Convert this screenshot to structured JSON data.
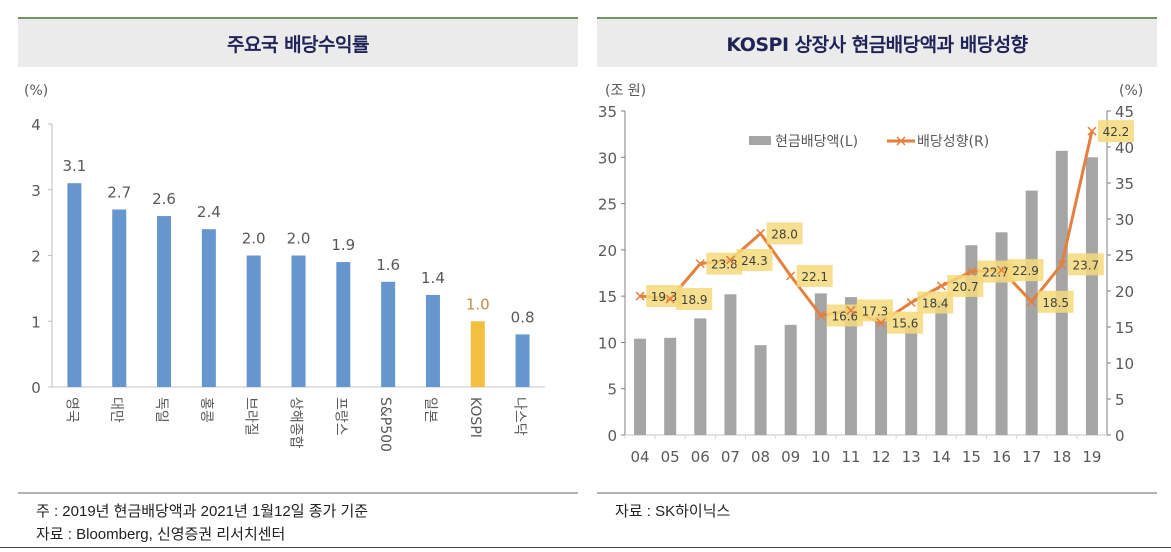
{
  "left_panel": {
    "title": "주요국 배당수익률",
    "notes": [
      "주 : 2019년 현금배당액과 2021년 1월12일 종가 기준",
      "자료 : Bloomberg, 신영증권 리서치센터"
    ]
  },
  "right_panel": {
    "title": "KOSPI 상장사 현금배당액과 배당성향",
    "notes": [
      "자료 : SK하이닉스"
    ]
  },
  "colors": {
    "bar_blue": "#6596cd",
    "bar_highlight": "#f2c03c",
    "highlight_label": "#c98a4b",
    "bar_gray": "#a5a5a5",
    "line_orange": "#e57f3c",
    "label_box": "#f5d97a",
    "axis": "#8c8c8c",
    "text": "#595959"
  },
  "chart_data": [
    {
      "type": "bar",
      "title": "주요국 배당수익률",
      "ylabel": "(%)",
      "xlabel": "",
      "ylim": [
        0,
        4
      ],
      "yticks": [
        "0",
        "1",
        "2",
        "3",
        "4"
      ],
      "grid": false,
      "categories": [
        "영국",
        "대만",
        "독일",
        "홍콩",
        "브라질",
        "상해종합",
        "프랑스",
        "S&P500",
        "일본",
        "KOSPI",
        "나스닥"
      ],
      "values": [
        3.1,
        2.7,
        2.6,
        2.4,
        2.0,
        2.0,
        1.9,
        1.6,
        1.4,
        1.0,
        0.8
      ],
      "value_labels": [
        "3.1",
        "2.7",
        "2.6",
        "2.4",
        "2.0",
        "2.0",
        "1.9",
        "1.6",
        "1.4",
        "1.0",
        "0.8"
      ],
      "highlight": "KOSPI"
    },
    {
      "type": "bar+line",
      "title": "KOSPI 상장사 현금배당액과 배당성향",
      "ylabel_left": "(조 원)",
      "ylabel_right": "(%)",
      "ylim_left": [
        0,
        35
      ],
      "ylim_right": [
        0,
        45
      ],
      "yticks_left": [
        "0",
        "5",
        "10",
        "15",
        "20",
        "25",
        "30",
        "35"
      ],
      "yticks_right": [
        "0",
        "5",
        "10",
        "15",
        "20",
        "25",
        "30",
        "35",
        "40",
        "45"
      ],
      "grid": false,
      "legend_position": "top-center",
      "categories": [
        "04",
        "05",
        "06",
        "07",
        "08",
        "09",
        "10",
        "11",
        "12",
        "13",
        "14",
        "15",
        "16",
        "17",
        "18",
        "19"
      ],
      "series": [
        {
          "name": "현금배당액(L)",
          "type": "bar",
          "axis": "left",
          "values": [
            10.4,
            10.5,
            12.6,
            15.2,
            9.7,
            11.9,
            15.3,
            14.9,
            12.9,
            11.9,
            14.5,
            20.5,
            21.9,
            26.4,
            30.7,
            30.0
          ]
        },
        {
          "name": "배당성향(R)",
          "type": "line",
          "axis": "right",
          "values": [
            19.3,
            18.9,
            23.8,
            24.3,
            28.0,
            22.1,
            16.6,
            17.3,
            15.6,
            18.4,
            20.7,
            22.7,
            22.9,
            18.5,
            23.7,
            42.2
          ],
          "value_labels": [
            "19.3",
            "18.9",
            "23.8",
            "24.3",
            "28.0",
            "22.1",
            "16.6",
            "17.3",
            "15.6",
            "18.4",
            "20.7",
            "22.7",
            "22.9",
            "18.5",
            "23.7",
            "42.2"
          ]
        }
      ]
    }
  ]
}
